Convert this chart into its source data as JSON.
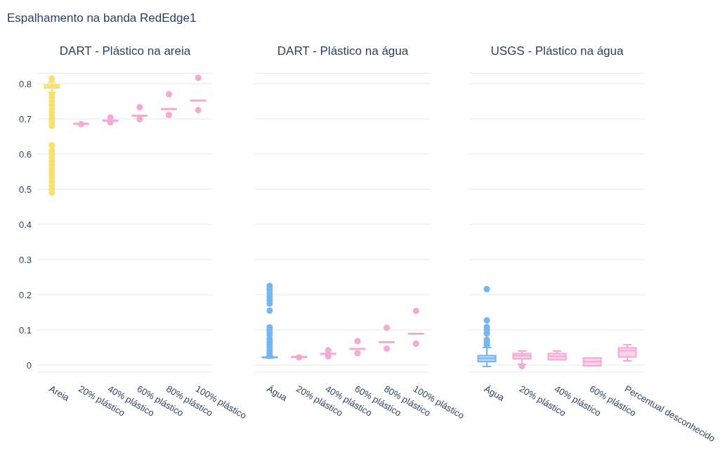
{
  "chart_data": [
    {
      "type": "box",
      "title": "Espalhamento na banda RedEdge1",
      "subtitle": "DART - Plástico na areia",
      "categories": [
        "Areia",
        "20% plástico",
        "40% plástico",
        "60% plástico",
        "80% plástico",
        "100% plástico"
      ],
      "colors": [
        "#f9df6b",
        "#f7a8d4",
        "#f7a8d4",
        "#f7a8d4",
        "#f7a8d4",
        "#f7a8d4"
      ],
      "boxes": [
        {
          "low": 0.776,
          "q1": 0.788,
          "median": 0.793,
          "q3": 0.797,
          "high": 0.805,
          "outliers": [
            0.815,
            0.77,
            0.76,
            0.75,
            0.74,
            0.73,
            0.72,
            0.71,
            0.7,
            0.69,
            0.68,
            0.625,
            0.61,
            0.6,
            0.59,
            0.58,
            0.57,
            0.56,
            0.55,
            0.54,
            0.53,
            0.52,
            0.51,
            0.5,
            0.49
          ]
        },
        {
          "low": 0.685,
          "q1": 0.685,
          "median": 0.686,
          "q3": 0.687,
          "high": 0.687,
          "outliers": [
            0.685
          ]
        },
        {
          "low": 0.694,
          "q1": 0.694,
          "median": 0.695,
          "q3": 0.696,
          "high": 0.696,
          "outliers": [
            0.704,
            0.69
          ]
        },
        {
          "low": 0.708,
          "q1": 0.708,
          "median": 0.709,
          "q3": 0.71,
          "high": 0.71,
          "outliers": [
            0.733,
            0.699
          ]
        },
        {
          "low": 0.727,
          "q1": 0.727,
          "median": 0.728,
          "q3": 0.729,
          "high": 0.729,
          "outliers": [
            0.77,
            0.711
          ]
        },
        {
          "low": 0.751,
          "q1": 0.751,
          "median": 0.752,
          "q3": 0.753,
          "high": 0.753,
          "outliers": [
            0.817,
            0.725
          ]
        }
      ],
      "ylim": [
        -0.02,
        0.83
      ],
      "yticks": [
        0,
        0.1,
        0.2,
        0.3,
        0.4,
        0.5,
        0.6,
        0.7,
        0.8
      ],
      "grid": "y"
    },
    {
      "type": "box",
      "subtitle": "DART - Plástico na água",
      "categories": [
        "Água",
        "20% plástico",
        "40% plástico",
        "60% plástico",
        "80% plástico",
        "100% plástico"
      ],
      "colors": [
        "#74b6f2",
        "#f7a8d4",
        "#f7a8d4",
        "#f7a8d4",
        "#f7a8d4",
        "#f7a8d4"
      ],
      "boxes": [
        {
          "low": 0.02,
          "q1": 0.021,
          "median": 0.022,
          "q3": 0.023,
          "high": 0.025,
          "outliers": [
            0.225,
            0.215,
            0.205,
            0.195,
            0.185,
            0.175,
            0.155,
            0.107,
            0.1,
            0.093,
            0.085,
            0.074,
            0.065,
            0.057,
            0.05,
            0.042,
            0.034,
            0.026
          ]
        },
        {
          "low": 0.022,
          "q1": 0.022,
          "median": 0.023,
          "q3": 0.024,
          "high": 0.024,
          "outliers": [
            0.022
          ]
        },
        {
          "low": 0.031,
          "q1": 0.031,
          "median": 0.032,
          "q3": 0.033,
          "high": 0.033,
          "outliers": [
            0.042,
            0.025
          ]
        },
        {
          "low": 0.045,
          "q1": 0.045,
          "median": 0.046,
          "q3": 0.047,
          "high": 0.047,
          "outliers": [
            0.068,
            0.034
          ]
        },
        {
          "low": 0.064,
          "q1": 0.064,
          "median": 0.065,
          "q3": 0.066,
          "high": 0.066,
          "outliers": [
            0.106,
            0.047
          ]
        },
        {
          "low": 0.088,
          "q1": 0.088,
          "median": 0.089,
          "q3": 0.09,
          "high": 0.09,
          "outliers": [
            0.154,
            0.061
          ]
        }
      ],
      "ylim": [
        -0.02,
        0.83
      ],
      "yticks": [
        0,
        0.1,
        0.2,
        0.3,
        0.4,
        0.5,
        0.6,
        0.7,
        0.8
      ],
      "grid": "y",
      "tick_labels": "x"
    },
    {
      "type": "box",
      "subtitle": "USGS - Plástico na água",
      "categories": [
        "Água",
        "20% plástico",
        "40% plástico",
        "60% plástico",
        "Percentual desconhecido"
      ],
      "colors": [
        "#74b6f2",
        "#f7a8d4",
        "#f7a8d4",
        "#f7a8d4",
        "#f7a8d4"
      ],
      "boxes": [
        {
          "low": -0.004,
          "q1": 0.01,
          "median": 0.019,
          "q3": 0.027,
          "high": 0.05,
          "outliers": [
            0.216,
            0.127,
            0.108,
            0.1,
            0.09,
            0.072,
            0.065,
            0.057
          ]
        },
        {
          "low": 0.002,
          "q1": 0.018,
          "median": 0.027,
          "q3": 0.033,
          "high": 0.04,
          "outliers": [
            -0.003
          ]
        },
        {
          "low": 0.015,
          "q1": 0.015,
          "median": 0.025,
          "q3": 0.033,
          "high": 0.04
        },
        {
          "low": -0.002,
          "q1": -0.002,
          "median": 0.01,
          "q3": 0.02,
          "high": 0.02
        },
        {
          "low": 0.012,
          "q1": 0.023,
          "median": 0.041,
          "q3": 0.049,
          "high": 0.058
        }
      ],
      "ylim": [
        -0.02,
        0.83
      ],
      "yticks": [
        0,
        0.1,
        0.2,
        0.3,
        0.4,
        0.5,
        0.6,
        0.7,
        0.8
      ],
      "grid": "y",
      "tick_labels": "x"
    }
  ]
}
